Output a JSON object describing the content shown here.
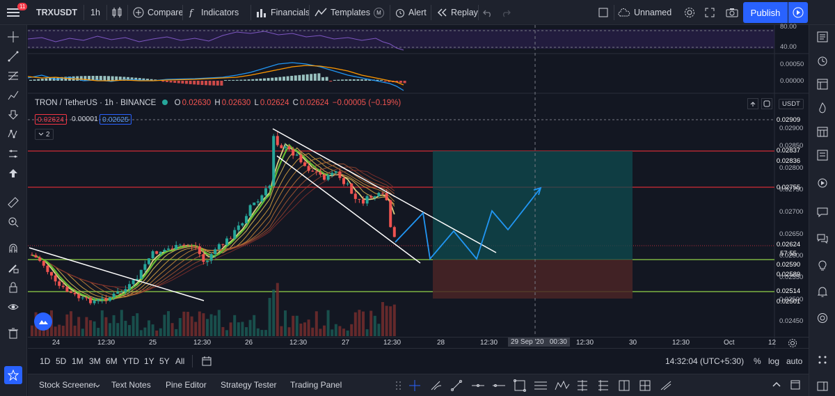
{
  "topbar": {
    "notification_count": "11",
    "symbol": "TRXUSDT",
    "interval": "1h",
    "compare": "Compare",
    "indicators": "Indicators",
    "financials": "Financials",
    "templates": "Templates",
    "templates_badge": "M",
    "alert": "Alert",
    "replay": "Replay",
    "layout_name": "Unnamed",
    "publish": "Publish"
  },
  "legend": {
    "title": "TRON / TetherUS · 1h · BINANCE",
    "ohlc": {
      "o_label": "O",
      "o": "0.02630",
      "h_label": "H",
      "h": "0.02630",
      "l_label": "L",
      "l": "0.02624",
      "c_label": "C",
      "c": "0.02624",
      "change": "−0.00005 (−0.19%)"
    },
    "bid": "0.02624",
    "spread": "0.00001",
    "ask": "0.02625",
    "collapsed_count": "2",
    "currency": "USDT"
  },
  "rsi_axis": [
    "80.00",
    "40.00"
  ],
  "macd_axis": [
    "0.00050",
    "0.00000"
  ],
  "price_axis": [
    "0.02900",
    "0.02850",
    "0.02800",
    "0.02750",
    "0.02700",
    "0.02650",
    "0.02600",
    "0.02550",
    "0.02500",
    "0.02450"
  ],
  "price_tags": [
    {
      "value": "0.02909",
      "color": "#363a45"
    },
    {
      "value": "0.02837",
      "color": "#089981"
    },
    {
      "value": "0.02836",
      "color": "#b22833"
    },
    {
      "value": "0.02755",
      "color": "#b22833"
    },
    {
      "value": "0.02624",
      "color": "#f23645"
    },
    {
      "value": "57:55",
      "color": "#f23645"
    },
    {
      "value": "0.02590",
      "color": "#363a45"
    },
    {
      "value": "0.02589",
      "color": "#4caf50"
    },
    {
      "value": "0.02514",
      "color": "#4caf50"
    },
    {
      "value": "0.02501",
      "color": "#f23645"
    }
  ],
  "time_axis": [
    "24",
    "12:30",
    "25",
    "12:30",
    "26",
    "12:30",
    "27",
    "12:30",
    "28",
    "12:30",
    "29 Sep '20   00:30",
    "12:30",
    "30",
    "12:30",
    "Oct",
    "12"
  ],
  "bottom_bar": {
    "ranges": [
      "1D",
      "5D",
      "1M",
      "3M",
      "6M",
      "YTD",
      "1Y",
      "5Y",
      "All"
    ],
    "clock": "14:32:04 (UTC+5:30)",
    "percent": "%",
    "log": "log",
    "auto": "auto"
  },
  "bottom_tabs": [
    "Stock Screener",
    "Text Notes",
    "Pine Editor",
    "Strategy Tester",
    "Trading Panel"
  ],
  "colors": {
    "bg": "#131722",
    "panel": "#1e222d",
    "accent": "#2962ff",
    "up": "#26a69a",
    "down": "#ef5350"
  }
}
